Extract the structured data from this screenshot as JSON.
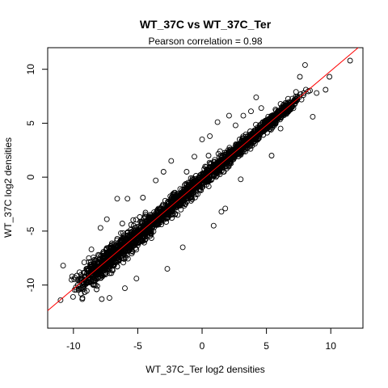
{
  "chart_data": {
    "type": "scatter",
    "title": "WT_37C vs WT_37C_Ter",
    "subtitle": "Pearson correlation =  0.98",
    "xlabel": "WT_37C_Ter log2 densities",
    "ylabel": "WT_37C log2 densities",
    "xlim": [
      -12.0,
      12.5
    ],
    "ylim": [
      -14.0,
      12.0
    ],
    "x_ticks": [
      -10,
      -5,
      0,
      5,
      10
    ],
    "y_ticks": [
      -10,
      -5,
      0,
      5,
      10
    ],
    "x_tick_labels": [
      "-10",
      "-5",
      "0",
      "5",
      "10"
    ],
    "y_tick_labels": [
      "-10",
      "-5",
      "0",
      "5",
      "10"
    ],
    "grid": false,
    "legend": "none",
    "point_color": "#000000",
    "point_style": "open-circle",
    "regression_line": {
      "slope": 1.01,
      "intercept": -0.25,
      "color": "#ff0000"
    },
    "points": [
      [
        -11.0,
        -11.4
      ],
      [
        -10.1,
        -9.2
      ],
      [
        -10.8,
        -8.2
      ],
      [
        -9.3,
        -11.2
      ],
      [
        -9.8,
        -10.2
      ],
      [
        -9.0,
        -8.5
      ],
      [
        -8.6,
        -6.7
      ],
      [
        -8.2,
        -10.4
      ],
      [
        -7.8,
        -11.3
      ],
      [
        -7.2,
        -11.2
      ],
      [
        -8.8,
        -7.5
      ],
      [
        -7.9,
        -4.7
      ],
      [
        -7.4,
        -3.9
      ],
      [
        -6.6,
        -2.0
      ],
      [
        -6.2,
        -4.3
      ],
      [
        -5.8,
        -2.0
      ],
      [
        -6.7,
        -7.9
      ],
      [
        -6.0,
        -10.3
      ],
      [
        -5.1,
        -9.4
      ],
      [
        -4.9,
        -6.0
      ],
      [
        -4.6,
        -1.9
      ],
      [
        -3.6,
        -0.3
      ],
      [
        -3.0,
        0.5
      ],
      [
        -2.7,
        -8.5
      ],
      [
        -1.9,
        -3.5
      ],
      [
        -2.4,
        1.5
      ],
      [
        -1.5,
        -6.5
      ],
      [
        -1.2,
        0.5
      ],
      [
        -0.6,
        1.9
      ],
      [
        0.0,
        3.5
      ],
      [
        0.6,
        3.8
      ],
      [
        0.5,
        2.0
      ],
      [
        0.9,
        -4.5
      ],
      [
        1.4,
        2.4
      ],
      [
        1.5,
        -3.2
      ],
      [
        1.8,
        -2.9
      ],
      [
        1.2,
        5.1
      ],
      [
        2.1,
        5.7
      ],
      [
        2.6,
        4.8
      ],
      [
        3.2,
        5.7
      ],
      [
        3.8,
        6.1
      ],
      [
        4.2,
        7.4
      ],
      [
        3.0,
        -0.2
      ],
      [
        4.1,
        3.1
      ],
      [
        4.6,
        6.4
      ],
      [
        5.4,
        2.0
      ],
      [
        5.8,
        5.2
      ],
      [
        6.1,
        4.5
      ],
      [
        7.3,
        7.9
      ],
      [
        7.6,
        9.3
      ],
      [
        8.0,
        10.4
      ],
      [
        8.6,
        5.6
      ],
      [
        8.9,
        7.8
      ],
      [
        9.6,
        8.1
      ],
      [
        9.9,
        9.3
      ],
      [
        11.5,
        10.8
      ]
    ]
  }
}
